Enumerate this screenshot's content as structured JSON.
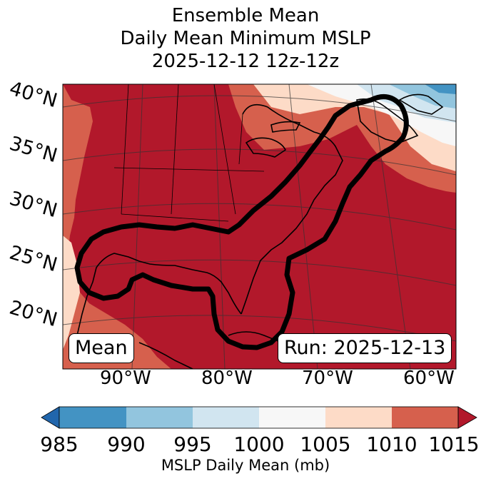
{
  "title": {
    "line1": "Ensemble Mean",
    "line2": "Daily Mean Minimum MSLP",
    "line3": "2025-12-12 12z-12z"
  },
  "map": {
    "lat_labels": [
      "40°N",
      "35°N",
      "30°N",
      "25°N",
      "20°N"
    ],
    "lon_labels": [
      "90°W",
      "80°W",
      "70°W",
      "60°W"
    ],
    "mean_label": "Mean",
    "run_label": "Run: 2025-12-13",
    "outline_color": "#000000",
    "land_border_color": "#000000"
  },
  "colorbar": {
    "label": "MSLP Daily Mean (mb)",
    "ticks": [
      "985",
      "990",
      "995",
      "1000",
      "1005",
      "1010",
      "1015"
    ],
    "bins": [
      {
        "range": "<985",
        "color": "#2166ac"
      },
      {
        "range": "985-990",
        "color": "#4393c3"
      },
      {
        "range": "990-995",
        "color": "#92c5de"
      },
      {
        "range": "995-1000",
        "color": "#d1e5f0"
      },
      {
        "range": "1000-1005",
        "color": "#f7f7f7"
      },
      {
        "range": "1005-1010",
        "color": "#fddbc7"
      },
      {
        "range": "1010-1015",
        "color": "#d6604d"
      },
      {
        "range": ">1015",
        "color": "#b2182b"
      }
    ]
  }
}
